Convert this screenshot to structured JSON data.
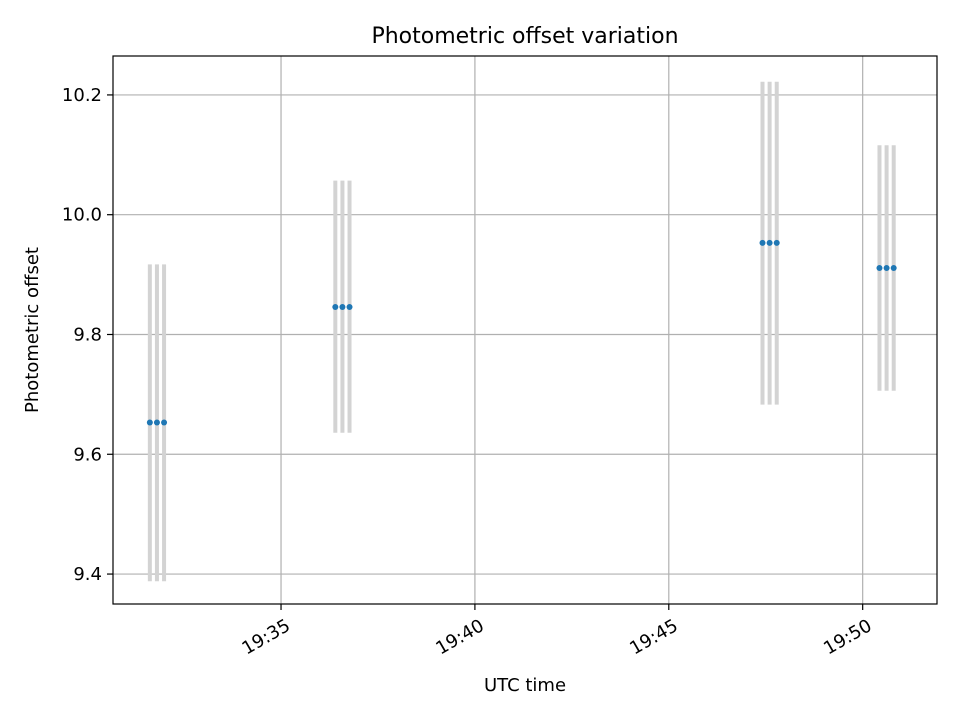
{
  "chart_data": {
    "type": "scatter",
    "title": "Photometric offset variation",
    "xlabel": "UTC time",
    "ylabel": "Photometric offset",
    "xlim": [
      "19:30:40",
      "19:51:55"
    ],
    "ylim": [
      9.35,
      10.265
    ],
    "grid": true,
    "x_ticks": [
      "19:35",
      "19:40",
      "19:45",
      "19:50"
    ],
    "y_ticks": [
      "9.4",
      "9.6",
      "9.8",
      "10.0",
      "10.2"
    ],
    "points": [
      {
        "x": "19:31:37",
        "y": 9.653,
        "yerr_low": 9.388,
        "yerr_high": 9.917
      },
      {
        "x": "19:31:48",
        "y": 9.653,
        "yerr_low": 9.388,
        "yerr_high": 9.917
      },
      {
        "x": "19:31:59",
        "y": 9.653,
        "yerr_low": 9.388,
        "yerr_high": 9.917
      },
      {
        "x": "19:36:24",
        "y": 9.846,
        "yerr_low": 9.636,
        "yerr_high": 10.057
      },
      {
        "x": "19:36:35",
        "y": 9.846,
        "yerr_low": 9.636,
        "yerr_high": 10.057
      },
      {
        "x": "19:36:46",
        "y": 9.846,
        "yerr_low": 9.636,
        "yerr_high": 10.057
      },
      {
        "x": "19:47:25",
        "y": 9.953,
        "yerr_low": 9.683,
        "yerr_high": 10.222
      },
      {
        "x": "19:47:36",
        "y": 9.953,
        "yerr_low": 9.683,
        "yerr_high": 10.222
      },
      {
        "x": "19:47:47",
        "y": 9.953,
        "yerr_low": 9.683,
        "yerr_high": 10.222
      },
      {
        "x": "19:50:26",
        "y": 9.911,
        "yerr_low": 9.706,
        "yerr_high": 10.116
      },
      {
        "x": "19:50:37",
        "y": 9.911,
        "yerr_low": 9.706,
        "yerr_high": 10.116
      },
      {
        "x": "19:50:48",
        "y": 9.911,
        "yerr_low": 9.706,
        "yerr_high": 10.116
      }
    ],
    "colors": {
      "marker": "#1f77b4",
      "errorbar": "#d3d3d3",
      "grid": "#b0b0b0",
      "axes": "#000000"
    }
  }
}
